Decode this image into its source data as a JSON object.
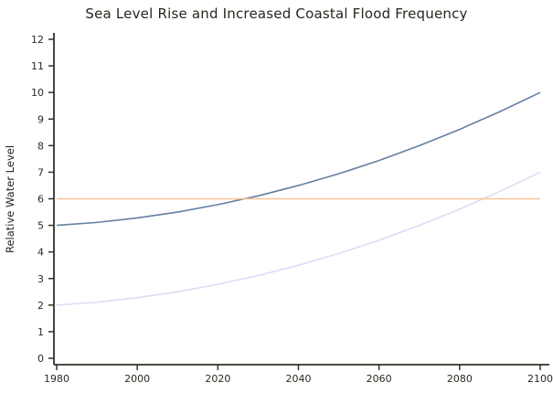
{
  "chart_data": {
    "type": "line",
    "title": "Sea Level Rise and Increased Coastal Flood Frequency",
    "xlabel": "",
    "ylabel": "Relative Water Level",
    "x": [
      1980,
      1990,
      2000,
      2010,
      2020,
      2030,
      2040,
      2050,
      2060,
      2070,
      2080,
      2090,
      2100
    ],
    "series": [
      {
        "name": "high-water-level-curve",
        "color": "#64809f",
        "values": [
          5.0,
          5.11,
          5.28,
          5.5,
          5.78,
          6.11,
          6.5,
          6.94,
          7.44,
          8.0,
          8.61,
          9.28,
          10.0
        ]
      },
      {
        "name": "low-water-level-curve",
        "color": "#dcdcf6",
        "values": [
          2.0,
          2.11,
          2.28,
          2.5,
          2.78,
          3.11,
          3.5,
          3.94,
          4.44,
          5.0,
          5.61,
          6.28,
          7.0
        ]
      },
      {
        "name": "flood-threshold-line",
        "color": "#fdc396",
        "values": [
          6,
          6,
          6,
          6,
          6,
          6,
          6,
          6,
          6,
          6,
          6,
          6,
          6
        ]
      }
    ],
    "xticks": [
      1980,
      2000,
      2020,
      2040,
      2060,
      2080,
      2100
    ],
    "yticks": [
      0,
      1,
      2,
      3,
      4,
      5,
      6,
      7,
      8,
      9,
      10,
      11,
      12
    ],
    "xlim": [
      1979,
      2102
    ],
    "ylim": [
      0,
      12.3
    ],
    "grid": false,
    "legend": "none",
    "axis_color": "#33332a",
    "background": "#ffffff"
  }
}
